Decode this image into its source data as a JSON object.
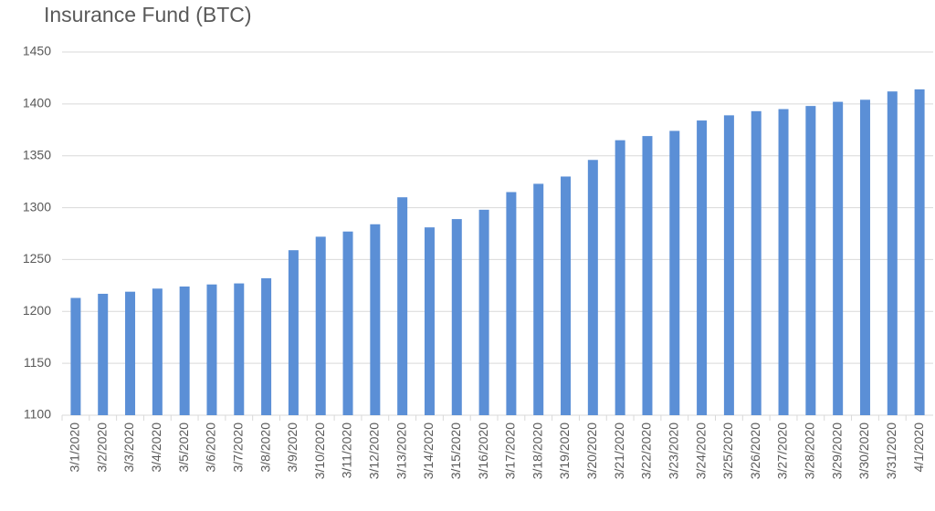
{
  "chart_data": {
    "type": "bar",
    "title": "Insurance Fund (BTC)",
    "categories": [
      "3/1/2020",
      "3/2/2020",
      "3/3/2020",
      "3/4/2020",
      "3/5/2020",
      "3/6/2020",
      "3/7/2020",
      "3/8/2020",
      "3/9/2020",
      "3/10/2020",
      "3/11/2020",
      "3/12/2020",
      "3/13/2020",
      "3/14/2020",
      "3/15/2020",
      "3/16/2020",
      "3/17/2020",
      "3/18/2020",
      "3/19/2020",
      "3/20/2020",
      "3/21/2020",
      "3/22/2020",
      "3/23/2020",
      "3/24/2020",
      "3/25/2020",
      "3/26/2020",
      "3/27/2020",
      "3/28/2020",
      "3/29/2020",
      "3/30/2020",
      "3/31/2020",
      "4/1/2020"
    ],
    "values": [
      1213,
      1217,
      1219,
      1222,
      1224,
      1226,
      1227,
      1232,
      1259,
      1272,
      1277,
      1284,
      1310,
      1281,
      1289,
      1298,
      1315,
      1323,
      1330,
      1346,
      1365,
      1369,
      1374,
      1384,
      1389,
      1393,
      1395,
      1398,
      1402,
      1404,
      1412,
      1414
    ],
    "color": "#5b8fd6",
    "ylim": [
      1100,
      1450
    ],
    "yticks": [
      1100,
      1150,
      1200,
      1250,
      1300,
      1350,
      1400,
      1450
    ],
    "grid": true
  }
}
